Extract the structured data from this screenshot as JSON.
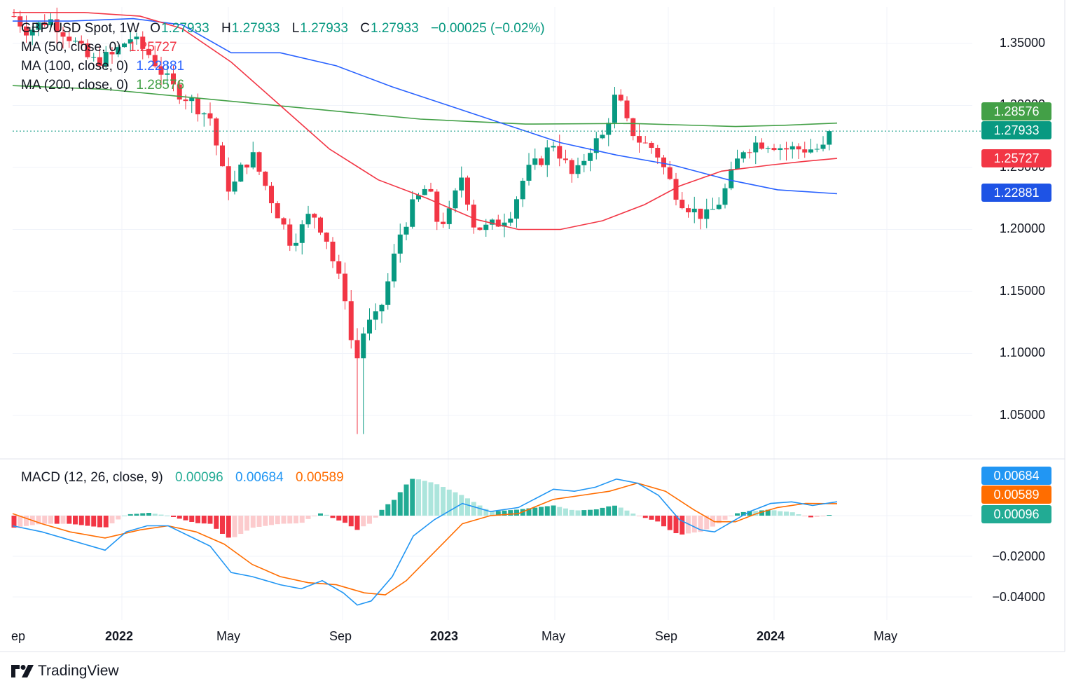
{
  "symbol_line": {
    "name": "GBP/USD Spot, 1W",
    "o_label": "O",
    "o_value": "1.27933",
    "h_label": "H",
    "h_value": "1.27933",
    "l_label": "L",
    "l_value": "1.27933",
    "c_label": "C",
    "c_value": "1.27933",
    "change": "−0.00025 (−0.02%)"
  },
  "ma_legends": [
    {
      "label": "MA (50, close, 0)",
      "value": "1.25727",
      "color": "#f23645"
    },
    {
      "label": "MA (100, close, 0)",
      "value": "1.22881",
      "color": "#2962ff"
    },
    {
      "label": "MA (200, close, 0)",
      "value": "1.28576",
      "color": "#43a047"
    }
  ],
  "macd_legend": {
    "label": "MACD (12, 26, close, 9)",
    "hist": "0.00096",
    "macd": "0.00684",
    "signal": "0.00589"
  },
  "price_axis": [
    "1.35000",
    "1.30000",
    "1.25000",
    "1.20000",
    "1.15000",
    "1.10000",
    "1.05000"
  ],
  "price_tags": [
    {
      "text": "1.28576",
      "value": 1.28576,
      "color": "#43a047"
    },
    {
      "text": "1.27933",
      "value": 1.27933,
      "color": "#089981"
    },
    {
      "text": "1.25727",
      "value": 1.25727,
      "color": "#f23645"
    },
    {
      "text": "1.22881",
      "value": 1.22881,
      "color": "#1e53e5"
    }
  ],
  "macd_axis": [
    "−0.02000",
    "−0.04000"
  ],
  "macd_tags": [
    {
      "text": "0.00684",
      "value": 0.00684,
      "color": "#2196f3"
    },
    {
      "text": "0.00589",
      "value": 0.00589,
      "color": "#ff6d00"
    },
    {
      "text": "0.00096",
      "value": 0.00096,
      "color": "#22ab94"
    }
  ],
  "time_axis": [
    {
      "text": "ep",
      "bold": false
    },
    {
      "text": "2022",
      "bold": true
    },
    {
      "text": "May",
      "bold": false
    },
    {
      "text": "Sep",
      "bold": false
    },
    {
      "text": "2023",
      "bold": true
    },
    {
      "text": "May",
      "bold": false
    },
    {
      "text": "Sep",
      "bold": false
    },
    {
      "text": "2024",
      "bold": true
    },
    {
      "text": "May",
      "bold": false
    }
  ],
  "brand": "TradingView",
  "colors": {
    "up": "#089981",
    "down": "#f23645",
    "grid": "#f0f3fa",
    "last_price_line": "#089981"
  },
  "chart_data": {
    "type": "candlestick",
    "interval": "1W",
    "instrument": "GBP/USD Spot",
    "last_close": 1.27933,
    "y_range": [
      1.01,
      1.37
    ],
    "x_range": [
      "2021-09",
      "2024-05"
    ],
    "price_key_points": [
      {
        "date": "2021-09",
        "close": 1.37
      },
      {
        "date": "2021-12",
        "close": 1.33
      },
      {
        "date": "2022-04",
        "close": 1.3
      },
      {
        "date": "2022-05",
        "close": 1.23
      },
      {
        "date": "2022-07",
        "close": 1.19
      },
      {
        "date": "2022-09",
        "close": 1.08,
        "low": 1.035
      },
      {
        "date": "2022-12",
        "close": 1.22
      },
      {
        "date": "2023-03",
        "close": 1.2
      },
      {
        "date": "2023-07",
        "close": 1.31
      },
      {
        "date": "2023-10",
        "close": 1.21
      },
      {
        "date": "2023-12",
        "close": 1.27
      },
      {
        "date": "2024-03",
        "close": 1.27933
      }
    ],
    "moving_averages": [
      {
        "name": "MA (50, close, 0)",
        "last": 1.25727
      },
      {
        "name": "MA (100, close, 0)",
        "last": 1.22881
      },
      {
        "name": "MA (200, close, 0)",
        "last": 1.28576
      }
    ],
    "macd": {
      "y_range": [
        -0.05,
        0.012
      ],
      "last_macd": 0.00684,
      "last_signal": 0.00589,
      "last_hist": 0.00096,
      "key_points": [
        {
          "date": "2022-09",
          "macd": -0.044
        },
        {
          "date": "2022-12",
          "macd": 0.0
        },
        {
          "date": "2023-07",
          "macd": 0.01
        },
        {
          "date": "2023-10",
          "macd": -0.004
        },
        {
          "date": "2024-03",
          "macd": 0.00684
        }
      ]
    }
  }
}
